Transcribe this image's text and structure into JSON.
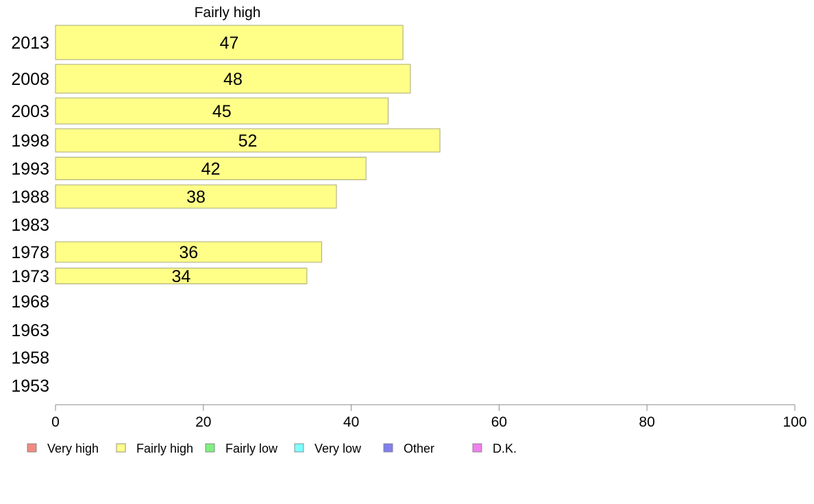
{
  "chart_data": {
    "type": "bar",
    "orientation": "horizontal",
    "title": "Fairly high",
    "categories": [
      "2013",
      "2008",
      "2003",
      "1998",
      "1993",
      "1988",
      "1983",
      "1978",
      "1973",
      "1968",
      "1963",
      "1958",
      "1953"
    ],
    "values": [
      47,
      48,
      45,
      52,
      42,
      38,
      null,
      36,
      34,
      null,
      null,
      null,
      null
    ],
    "xlim": [
      0,
      100
    ],
    "xticks": [
      "0",
      "20",
      "40",
      "60",
      "80",
      "100"
    ],
    "xlabel": "",
    "ylabel": "",
    "grid": false,
    "bar_color": "#ffff88",
    "bar_border": "#a8a878",
    "legend": {
      "placement": "bottom",
      "items": [
        {
          "label": "Very high",
          "color": "#f28b82"
        },
        {
          "label": "Fairly high",
          "color": "#ffff88"
        },
        {
          "label": "Fairly low",
          "color": "#80f080"
        },
        {
          "label": "Very low",
          "color": "#80ffff"
        },
        {
          "label": "Other",
          "color": "#8080f0"
        },
        {
          "label": "D.K.",
          "color": "#f080f0"
        }
      ]
    }
  }
}
